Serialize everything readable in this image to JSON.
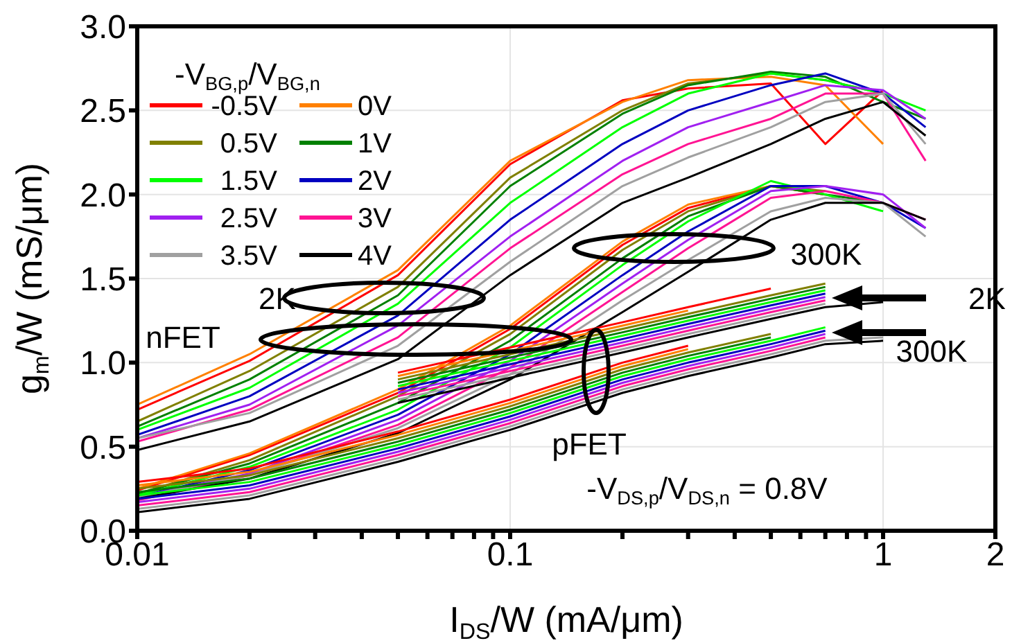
{
  "chart_data": {
    "type": "line",
    "xlabel": "I$_{DS}$/W (mA/μm)",
    "ylabel": "g$_{m}$/W (mS/μm)",
    "legend_title": "-V$_{BG,p}$/V$_{BG,n}$",
    "log": "x",
    "grid": true,
    "legend": "top left",
    "marker": "none",
    "line_style": "solid",
    "xlim": [
      0.01,
      2
    ],
    "xticks": [
      0.01,
      {
        "value": 0.02,
        "label": null
      },
      {
        "value": 0.03,
        "label": null
      },
      {
        "value": 0.04,
        "label": null
      },
      {
        "value": 0.05,
        "label": null
      },
      {
        "value": 0.06,
        "label": null
      },
      {
        "value": 0.07,
        "label": null
      },
      {
        "value": 0.08,
        "label": null
      },
      {
        "value": 0.09,
        "label": null
      },
      0.1,
      {
        "value": 0.2,
        "label": null
      },
      {
        "value": 0.3,
        "label": null
      },
      {
        "value": 0.4,
        "label": null
      },
      {
        "value": 0.5,
        "label": null
      },
      {
        "value": 0.6,
        "label": null
      },
      {
        "value": 0.7,
        "label": null
      },
      {
        "value": 0.8,
        "label": null
      },
      {
        "value": 0.9,
        "label": null
      },
      1,
      2
    ],
    "ylim": [
      0,
      3
    ],
    "yticks": [
      {
        "value": 0,
        "label": "0.0"
      },
      0.5,
      {
        "value": 1,
        "label": "1.0"
      },
      1.5,
      {
        "value": 2,
        "label": "2.0"
      },
      2.5,
      {
        "value": 3,
        "label": "3.0"
      }
    ],
    "x": [
      0.01,
      0.02,
      0.05,
      0.1,
      0.2,
      0.3,
      0.5,
      0.7,
      1,
      1.3
    ],
    "series": [
      {
        "name": "-0.5V",
        "color": "#ff0000",
        "values": [
          0.72,
          1.01,
          1.52,
          2.18,
          2.56,
          2.63,
          2.66,
          2.3,
          2.62,
          null
        ]
      },
      {
        "name": "0V",
        "color": "#ff8000",
        "values": [
          0.75,
          1.05,
          1.55,
          2.2,
          2.55,
          2.68,
          2.7,
          2.65,
          2.3,
          null
        ]
      },
      {
        "name": "0.5V",
        "color": "#808000",
        "values": [
          0.65,
          0.95,
          1.45,
          2.1,
          2.5,
          2.66,
          2.72,
          2.68,
          2.6,
          null
        ]
      },
      {
        "name": "1V",
        "color": "#008000",
        "values": [
          0.62,
          0.9,
          1.4,
          2.05,
          2.48,
          2.65,
          2.73,
          2.7,
          2.55,
          2.45
        ]
      },
      {
        "name": "1.5V",
        "color": "#00ff00",
        "values": [
          0.6,
          0.85,
          1.35,
          1.95,
          2.4,
          2.6,
          2.72,
          2.68,
          2.6,
          2.5
        ]
      },
      {
        "name": "2V",
        "color": "#0000c0",
        "values": [
          0.57,
          0.8,
          1.28,
          1.85,
          2.3,
          2.5,
          2.65,
          2.72,
          2.6,
          2.4
        ]
      },
      {
        "name": "2.5V",
        "color": "#a020f0",
        "values": [
          0.55,
          0.75,
          1.22,
          1.75,
          2.2,
          2.4,
          2.55,
          2.65,
          2.62,
          2.45
        ]
      },
      {
        "name": "3V",
        "color": "#ff1493",
        "values": [
          0.53,
          0.72,
          1.15,
          1.68,
          2.12,
          2.3,
          2.45,
          2.6,
          2.6,
          2.2
        ]
      },
      {
        "name": "3.5V",
        "color": "#a0a0a0",
        "values": [
          0.55,
          0.7,
          1.1,
          1.6,
          2.05,
          2.22,
          2.4,
          2.55,
          2.6,
          2.3
        ]
      },
      {
        "name": "4V",
        "color": "#000000",
        "values": [
          0.48,
          0.65,
          1.02,
          1.52,
          1.95,
          2.1,
          2.3,
          2.45,
          2.55,
          2.35
        ]
      },
      {
        "color": "#ff0000",
        "values": [
          0.24,
          0.45,
          0.82,
          1.2,
          1.7,
          1.92,
          2.05,
          2.0,
          null,
          null
        ]
      },
      {
        "color": "#ff8000",
        "values": [
          0.25,
          0.46,
          0.84,
          1.22,
          1.72,
          1.94,
          2.05,
          2.0,
          null,
          null
        ]
      },
      {
        "color": "#808000",
        "values": [
          0.22,
          0.42,
          0.8,
          1.17,
          1.67,
          1.9,
          2.05,
          2.02,
          null,
          null
        ]
      },
      {
        "color": "#008000",
        "values": [
          0.22,
          0.4,
          0.76,
          1.13,
          1.62,
          1.87,
          2.05,
          2.0,
          1.95,
          null
        ]
      },
      {
        "color": "#00ff00",
        "values": [
          0.21,
          0.38,
          0.72,
          1.09,
          1.58,
          1.84,
          2.08,
          2.0,
          1.9,
          null
        ]
      },
      {
        "color": "#0000c0",
        "values": [
          0.2,
          0.36,
          0.69,
          1.05,
          1.52,
          1.78,
          2.05,
          2.05,
          1.95,
          1.8
        ]
      },
      {
        "color": "#a020f0",
        "values": [
          0.2,
          0.34,
          0.66,
          1.01,
          1.47,
          1.73,
          2.02,
          2.05,
          2.0,
          1.8
        ]
      },
      {
        "color": "#ff1493",
        "values": [
          0.18,
          0.33,
          0.63,
          0.97,
          1.42,
          1.68,
          1.98,
          2.02,
          1.95,
          1.85
        ]
      },
      {
        "color": "#a0a0a0",
        "values": [
          0.2,
          0.33,
          0.61,
          0.93,
          1.37,
          1.61,
          1.9,
          1.98,
          1.95,
          1.75
        ]
      },
      {
        "color": "#000000",
        "values": [
          0.19,
          0.31,
          0.58,
          0.9,
          1.3,
          1.54,
          1.85,
          1.95,
          1.95,
          1.85
        ]
      },
      {
        "color": "#ff0000",
        "values": [
          null,
          null,
          0.94,
          1.09,
          1.24,
          1.33,
          1.44,
          null,
          null,
          null
        ]
      },
      {
        "color": "#ff8000",
        "values": [
          null,
          null,
          0.92,
          1.07,
          1.22,
          1.31,
          null,
          null,
          null,
          null
        ]
      },
      {
        "color": "#808000",
        "values": [
          null,
          null,
          0.9,
          1.05,
          1.2,
          1.29,
          1.4,
          1.47,
          null,
          null
        ]
      },
      {
        "color": "#008000",
        "values": [
          null,
          null,
          0.88,
          1.03,
          1.18,
          1.27,
          1.38,
          1.45,
          null,
          null
        ]
      },
      {
        "color": "#00ff00",
        "values": [
          null,
          null,
          0.86,
          1.01,
          1.16,
          1.25,
          1.36,
          1.43,
          null,
          null
        ]
      },
      {
        "color": "#0000c0",
        "values": [
          null,
          null,
          0.84,
          0.99,
          1.14,
          1.23,
          1.34,
          1.41,
          null,
          null
        ]
      },
      {
        "color": "#a020f0",
        "values": [
          null,
          null,
          0.82,
          0.97,
          1.12,
          1.21,
          1.32,
          1.39,
          null,
          null
        ]
      },
      {
        "color": "#ff1493",
        "values": [
          null,
          null,
          0.8,
          0.95,
          1.1,
          1.19,
          1.3,
          1.37,
          null,
          null
        ]
      },
      {
        "color": "#a0a0a0",
        "values": [
          null,
          null,
          0.78,
          0.93,
          1.08,
          1.17,
          1.28,
          1.35,
          null,
          null
        ]
      },
      {
        "color": "#000000",
        "values": [
          null,
          null,
          0.76,
          0.91,
          1.06,
          1.15,
          1.26,
          1.33,
          1.36,
          null
        ]
      },
      {
        "color": "#ff0000",
        "values": [
          0.29,
          0.37,
          0.59,
          0.78,
          1.0,
          1.1,
          null,
          null,
          null,
          null
        ]
      },
      {
        "color": "#ff8000",
        "values": [
          0.27,
          0.35,
          0.57,
          0.76,
          0.98,
          1.08,
          null,
          null,
          null,
          null
        ]
      },
      {
        "color": "#808000",
        "values": [
          0.25,
          0.33,
          0.55,
          0.74,
          0.96,
          1.06,
          1.17,
          null,
          null,
          null
        ]
      },
      {
        "color": "#008000",
        "values": [
          0.23,
          0.31,
          0.53,
          0.72,
          0.94,
          1.04,
          1.15,
          null,
          null,
          null
        ]
      },
      {
        "color": "#00ff00",
        "values": [
          0.21,
          0.29,
          0.51,
          0.7,
          0.92,
          1.02,
          1.13,
          1.21,
          null,
          null
        ]
      },
      {
        "color": "#0000c0",
        "values": [
          0.19,
          0.27,
          0.49,
          0.68,
          0.9,
          1.0,
          1.11,
          1.19,
          null,
          null
        ]
      },
      {
        "color": "#a020f0",
        "values": [
          0.17,
          0.25,
          0.47,
          0.66,
          0.88,
          0.98,
          1.09,
          1.17,
          null,
          null
        ]
      },
      {
        "color": "#ff1493",
        "values": [
          0.15,
          0.23,
          0.45,
          0.64,
          0.86,
          0.96,
          1.07,
          1.15,
          null,
          null
        ]
      },
      {
        "color": "#a0a0a0",
        "values": [
          0.13,
          0.21,
          0.43,
          0.62,
          0.84,
          0.94,
          1.05,
          1.13,
          1.15,
          null
        ]
      },
      {
        "color": "#000000",
        "values": [
          0.11,
          0.19,
          0.41,
          0.6,
          0.82,
          0.92,
          1.03,
          1.11,
          1.13,
          null
        ]
      }
    ],
    "annotations": [
      "2K",
      "nFET",
      "300K",
      "2K",
      "300K",
      "pFET",
      "-V$_{DS,p}$/V$_{DS,n}$ = 0.8V"
    ]
  }
}
